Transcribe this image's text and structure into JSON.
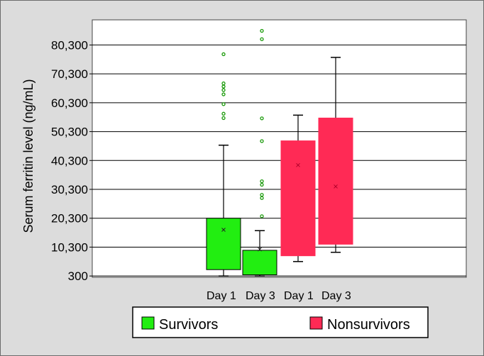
{
  "chart_data": {
    "type": "box",
    "title": "",
    "ylabel": "Serum ferritin level (ng/mL)",
    "yticks": [
      "300",
      "10,300",
      "20,300",
      "30,300",
      "40,300",
      "50,300",
      "60,300",
      "70,300",
      "80,300"
    ],
    "ylim": [
      -150,
      89000
    ],
    "grid": true,
    "categories": [
      "Day 1",
      "Day 3",
      "Day 1",
      "Day 3"
    ],
    "legend": {
      "position": "bottom"
    },
    "series": [
      {
        "name": "Survivors",
        "color": "#22ee11",
        "outline": "#000000",
        "boxes": [
          {
            "category": "Day 1",
            "min": 300,
            "q1": 2500,
            "median": 20200,
            "q3": 20300,
            "max": 45600,
            "mean": 16300,
            "outliers": [
              55000,
              56500,
              59800,
              63200,
              64700,
              65900,
              67000,
              77100
            ]
          },
          {
            "category": "Day 3",
            "min": 300,
            "q1": 700,
            "median": 9000,
            "q3": 9200,
            "max": 16000,
            "mean": 9500,
            "outliers": [
              21000,
              27300,
              28400,
              31900,
              33100,
              47000,
              54900,
              82300,
              85200
            ]
          }
        ]
      },
      {
        "name": "Nonsurvivors",
        "color": "#ff2a55",
        "outline": "#ff2a55",
        "boxes": [
          {
            "category": "Day 1",
            "min": 5300,
            "q1": 7300,
            "median": 47100,
            "q3": 47100,
            "max": 56000,
            "mean": 38700,
            "outliers": []
          },
          {
            "category": "Day 3",
            "min": 8500,
            "q1": 11300,
            "median": 55000,
            "q3": 55000,
            "max": 76000,
            "mean": 31300,
            "outliers": []
          }
        ]
      }
    ]
  }
}
